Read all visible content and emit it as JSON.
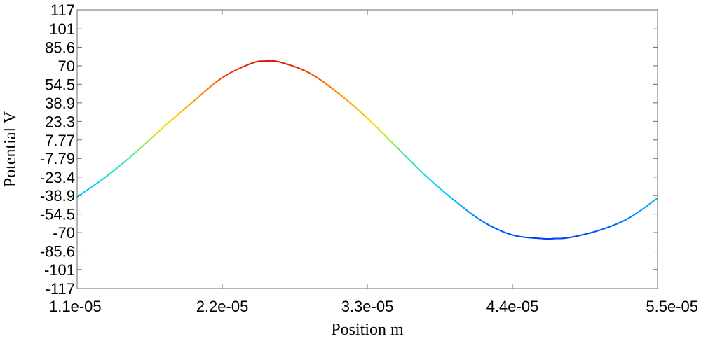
{
  "chart_data": {
    "type": "line",
    "xlabel": "Position m",
    "ylabel": "Potential V",
    "xlim": [
      1.1e-05,
      5.5e-05
    ],
    "ylim": [
      -117,
      117
    ],
    "x_ticks": [
      {
        "value": 1.1e-05,
        "label": "1.1e-05"
      },
      {
        "value": 2.2e-05,
        "label": "2.2e-05"
      },
      {
        "value": 3.3e-05,
        "label": "3.3e-05"
      },
      {
        "value": 4.4e-05,
        "label": "4.4e-05"
      },
      {
        "value": 5.5e-05,
        "label": "5.5e-05"
      }
    ],
    "y_ticks": [
      {
        "value": 117,
        "label": "117"
      },
      {
        "value": 101,
        "label": "101"
      },
      {
        "value": 85.6,
        "label": "85.6"
      },
      {
        "value": 70,
        "label": "70"
      },
      {
        "value": 54.5,
        "label": "54.5"
      },
      {
        "value": 38.9,
        "label": "38.9"
      },
      {
        "value": 23.3,
        "label": "23.3"
      },
      {
        "value": 7.77,
        "label": "7.77"
      },
      {
        "value": -7.79,
        "label": "-7.79"
      },
      {
        "value": -23.4,
        "label": "-23.4"
      },
      {
        "value": -38.9,
        "label": "-38.9"
      },
      {
        "value": -54.5,
        "label": "-54.5"
      },
      {
        "value": -70,
        "label": "-70"
      },
      {
        "value": -85.6,
        "label": "-85.6"
      },
      {
        "value": -101,
        "label": "-101"
      },
      {
        "value": -117,
        "label": "-117"
      }
    ],
    "grid": false,
    "colormap": "jet",
    "series": [
      {
        "x": [
          1.1e-05,
          1.32e-05,
          1.54e-05,
          1.76e-05,
          1.98e-05,
          2.2e-05,
          2.42e-05,
          2.53e-05,
          2.64e-05,
          2.86e-05,
          3.08e-05,
          3.3e-05,
          3.52e-05,
          3.74e-05,
          3.96e-05,
          4.18e-05,
          4.4e-05,
          4.62e-05,
          4.73e-05,
          4.84e-05,
          5.06e-05,
          5.28e-05,
          5.5e-05
        ],
        "y": [
          -40,
          -23,
          -3,
          19,
          40,
          60,
          72,
          74,
          73,
          64,
          47,
          26,
          2,
          -22,
          -43,
          -61,
          -72,
          -75,
          -75,
          -74,
          -68,
          -58,
          -41
        ]
      }
    ]
  }
}
